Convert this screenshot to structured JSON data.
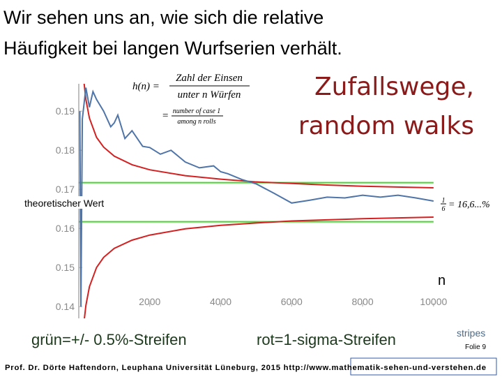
{
  "heading": [
    "Wir sehen uns an, wie sich die relative",
    "Häufigkeit bei langen Wurfserien verhält."
  ],
  "topic": [
    "Zufallswege,",
    "random walks"
  ],
  "formula": {
    "lhs": "h(n) =",
    "numerator": "Zahl der Einsen",
    "denominator": "unter n Würfen",
    "eq2": "=",
    "numerator2": "number of case 1",
    "denominator2": "among  n  rolls"
  },
  "captions": {
    "green": "grün=+/- 0.5%-Streifen",
    "red": "rot=1-sigma-Streifen",
    "stripes": "stripes",
    "slide": "Folie  9"
  },
  "footer": "Prof. Dr. Dörte Haftendorn, Leuphana Universität Lüneburg, 2015  http://www.mathematik-sehen-und-verstehen.de",
  "chart_data": {
    "type": "line",
    "annotations": {
      "theory": "theoretischer Wert",
      "x_label": "n",
      "value_numerator": "1",
      "value_denominator": "6",
      "value_text": "= 16,6...%"
    },
    "xlim": [
      0,
      10200
    ],
    "xticks": [
      2000,
      4000,
      6000,
      8000,
      10000
    ],
    "ylim": [
      0.137,
      0.197
    ],
    "yticks": [
      0.14,
      0.15,
      0.16,
      0.17,
      0.18,
      0.19
    ],
    "series": [
      {
        "color": "#44d62c",
        "x": [
          0,
          10000
        ],
        "values": [
          0.1717,
          0.1717
        ]
      },
      {
        "color": "#44d62c",
        "x": [
          0,
          10000
        ],
        "values": [
          0.1617,
          0.1617
        ]
      },
      {
        "color": "#d42020",
        "x": [
          150,
          200,
          300,
          500,
          700,
          1000,
          1500,
          2000,
          3000,
          4000,
          5000,
          6000,
          7000,
          8000,
          9000,
          10000
        ],
        "values": [
          0.1971,
          0.193,
          0.1882,
          0.1833,
          0.1808,
          0.1785,
          0.1763,
          0.175,
          0.1735,
          0.1726,
          0.1719,
          0.1715,
          0.1711,
          0.1708,
          0.1706,
          0.1704
        ]
      },
      {
        "color": "#d42020",
        "x": [
          150,
          200,
          300,
          500,
          700,
          1000,
          1500,
          2000,
          3000,
          4000,
          5000,
          6000,
          7000,
          8000,
          9000,
          10000
        ],
        "values": [
          0.1363,
          0.1403,
          0.1451,
          0.15,
          0.1526,
          0.1549,
          0.157,
          0.1583,
          0.1599,
          0.1608,
          0.1614,
          0.1619,
          0.1622,
          0.1625,
          0.1627,
          0.1629
        ]
      },
      {
        "color": "#4f74a8",
        "x": [
          30,
          60,
          100,
          200,
          300,
          400,
          500,
          700,
          900,
          1000,
          1100,
          1300,
          1500,
          1800,
          2000,
          2300,
          2600,
          3000,
          3400,
          3800,
          4000,
          4200,
          4600,
          5000,
          5500,
          6000,
          6500,
          7000,
          7500,
          8000,
          8500,
          9000,
          9500,
          10000
        ],
        "values": [
          0.19,
          0.14,
          0.188,
          0.196,
          0.191,
          0.195,
          0.193,
          0.19,
          0.186,
          0.187,
          0.189,
          0.183,
          0.185,
          0.181,
          0.1807,
          0.179,
          0.18,
          0.177,
          0.1755,
          0.176,
          0.1745,
          0.174,
          0.1725,
          0.1714,
          0.169,
          0.1665,
          0.1672,
          0.168,
          0.1678,
          0.1685,
          0.168,
          0.1685,
          0.1678,
          0.167
        ]
      }
    ]
  }
}
